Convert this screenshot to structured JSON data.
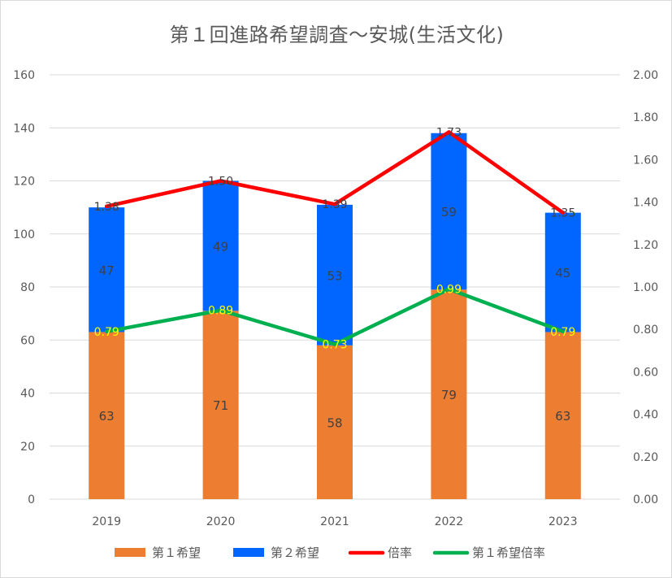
{
  "title": "第１回進路希望調査～安城(生活文化)",
  "colors": {
    "first": "#ED7D31",
    "second": "#0066FF",
    "ratio": "#FF0000",
    "first_ratio": "#00B050",
    "grid": "#d9d9d9"
  },
  "chart_data": {
    "type": "bar",
    "stacked": true,
    "categories": [
      "2019",
      "2020",
      "2021",
      "2022",
      "2023"
    ],
    "series": [
      {
        "name": "第１希望",
        "kind": "bar",
        "axis": "left",
        "color": "#ED7D31",
        "values": [
          63,
          71,
          58,
          79,
          63
        ]
      },
      {
        "name": "第２希望",
        "kind": "bar",
        "axis": "left",
        "color": "#0066FF",
        "values": [
          47,
          49,
          53,
          59,
          45
        ]
      },
      {
        "name": "倍率",
        "kind": "line",
        "axis": "right",
        "color": "#FF0000",
        "values": [
          1.38,
          1.5,
          1.39,
          1.73,
          1.35
        ]
      },
      {
        "name": "第１希望倍率",
        "kind": "line",
        "axis": "right",
        "color": "#00B050",
        "values": [
          0.79,
          0.89,
          0.73,
          0.99,
          0.79
        ]
      }
    ],
    "y_left": {
      "min": 0,
      "max": 160,
      "step": 20,
      "ticks": [
        "0",
        "20",
        "40",
        "60",
        "80",
        "100",
        "120",
        "140",
        "160"
      ]
    },
    "y_right": {
      "min": 0,
      "max": 2,
      "step": 0.2,
      "ticks": [
        "0.00",
        "0.20",
        "0.40",
        "0.60",
        "0.80",
        "1.00",
        "1.20",
        "1.40",
        "1.60",
        "1.80",
        "2.00"
      ]
    },
    "grid": true,
    "legend_position": "bottom"
  }
}
